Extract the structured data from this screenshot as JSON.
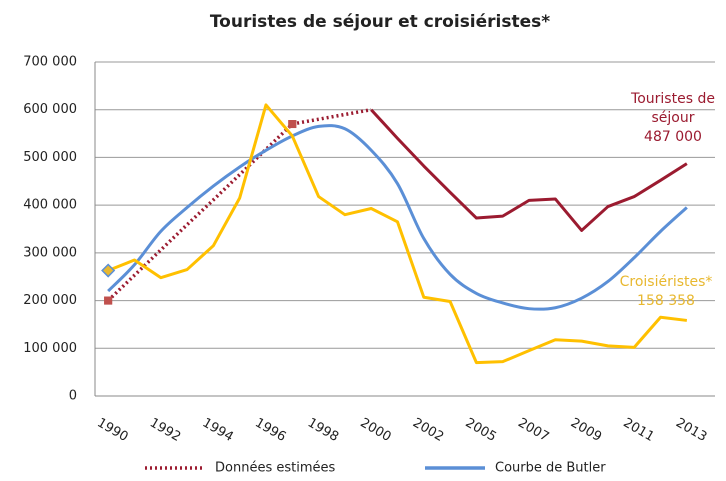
{
  "chart_data": {
    "type": "line",
    "title": "Touristes de séjour et croisiéristes*",
    "categories": [
      "1990",
      null,
      "1992",
      null,
      "1994",
      null,
      "1996",
      null,
      "1998",
      null,
      "2000",
      null,
      "2002",
      null,
      "2005",
      null,
      "2007",
      null,
      "2009",
      null,
      "2011",
      null,
      "2013"
    ],
    "ylim": [
      0,
      700000
    ],
    "yticks": [
      0,
      {
        "value": 100000,
        "label": "100 000"
      },
      {
        "value": 200000,
        "label": "200 000"
      },
      {
        "value": 300000,
        "label": "300 000"
      },
      {
        "value": 400000,
        "label": "400 000"
      },
      {
        "value": 500000,
        "label": "500 000"
      },
      {
        "value": 600000,
        "label": "600 000"
      },
      {
        "value": 700000,
        "label": "700 000"
      }
    ],
    "grid": true,
    "legend": "bottom",
    "series": [
      {
        "name": "Données estimées",
        "color": "#9b1b30",
        "style": "dotted",
        "legend": true,
        "values": [
          200000,
          253000,
          306000,
          359000,
          411000,
          464000,
          517000,
          570000,
          580000,
          590000,
          600000,
          null,
          null,
          null,
          null,
          null,
          null,
          null,
          null,
          null,
          null,
          null,
          null
        ]
      },
      {
        "name": "Courbe de Butler",
        "color": "#5b8fd6",
        "style": "smooth",
        "legend": true,
        "values": [
          220000,
          275000,
          345000,
          395000,
          440000,
          480000,
          515000,
          545000,
          565000,
          560000,
          515000,
          445000,
          330000,
          255000,
          215000,
          195000,
          183000,
          185000,
          205000,
          240000,
          290000,
          345000,
          395000
        ]
      },
      {
        "name": "Touristes de séjour",
        "color": "#9b1b30",
        "style": "solid",
        "marker": "square",
        "marker_color": "#c0504d",
        "values": [
          200000,
          null,
          null,
          null,
          null,
          null,
          null,
          570000,
          null,
          null,
          600000,
          540000,
          482000,
          427000,
          373000,
          377000,
          410000,
          413000,
          347000,
          397000,
          418000,
          452000,
          487000
        ],
        "value_labels": {
          "22": "487 000"
        }
      },
      {
        "name": "Croisiéristes*",
        "color": "#ffc000",
        "style": "solid",
        "first_marker": "diamond",
        "marker_color": "#e8b830",
        "values": [
          263000,
          285000,
          248000,
          265000,
          315000,
          415000,
          610000,
          545000,
          418000,
          380000,
          393000,
          365000,
          207000,
          198000,
          70000,
          72000,
          95000,
          118000,
          115000,
          105000,
          102000,
          165000,
          158358
        ],
        "value_labels": {
          "22": "158 358"
        }
      }
    ]
  }
}
